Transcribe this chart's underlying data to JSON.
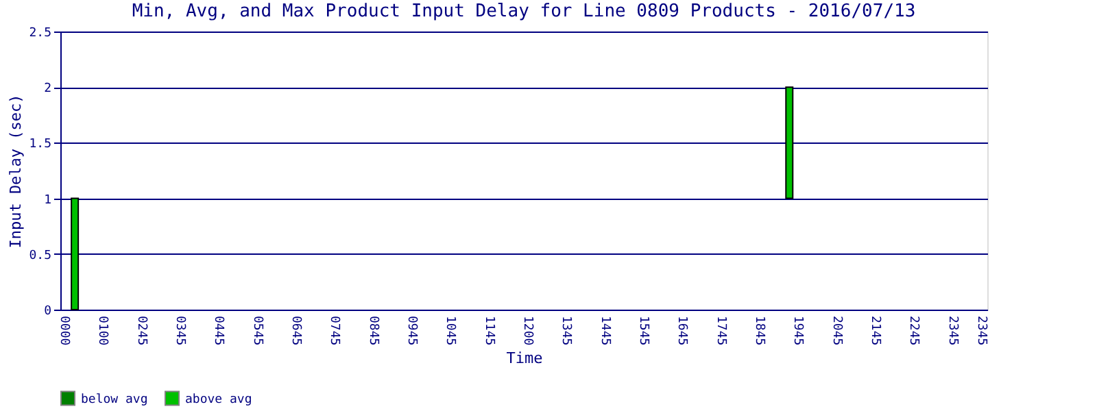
{
  "chart_data": {
    "type": "bar",
    "title": "Min, Avg, and Max Product Input Delay for Line 0809 Products - 2016/07/13",
    "xlabel": "Time",
    "ylabel": "Input Delay (sec)",
    "categories": [
      "0000",
      null,
      null,
      null,
      "0100",
      null,
      null,
      null,
      "0245",
      null,
      null,
      null,
      "0345",
      null,
      null,
      null,
      "0445",
      null,
      null,
      null,
      "0545",
      null,
      null,
      null,
      "0645",
      null,
      null,
      null,
      "0745",
      null,
      null,
      null,
      "0845",
      null,
      null,
      null,
      "0945",
      null,
      null,
      null,
      "1045",
      null,
      null,
      null,
      "1145",
      null,
      null,
      null,
      "1200",
      null,
      null,
      null,
      "1345",
      null,
      null,
      null,
      "1445",
      null,
      null,
      null,
      "1545",
      null,
      null,
      null,
      "1645",
      null,
      null,
      null,
      "1745",
      null,
      null,
      null,
      "1845",
      null,
      null,
      null,
      "1945",
      null,
      null,
      null,
      "2045",
      null,
      null,
      null,
      "2145",
      null,
      null,
      null,
      "2245",
      null,
      null,
      null,
      "2345",
      null,
      null,
      "2345"
    ],
    "series": [
      {
        "name": "below avg",
        "color": "#008000",
        "values": [
          null,
          null,
          null,
          null,
          null,
          null,
          null,
          null,
          null,
          null,
          null,
          null,
          null,
          null,
          null,
          null,
          null,
          null,
          null,
          null,
          null,
          null,
          null,
          null,
          null,
          null,
          null,
          null,
          null,
          null,
          null,
          null,
          null,
          null,
          null,
          null,
          null,
          null,
          null,
          null,
          null,
          null,
          null,
          null,
          null,
          null,
          null,
          null,
          null,
          null,
          null,
          null,
          null,
          null,
          null,
          null,
          null,
          null,
          null,
          null,
          null,
          null,
          null,
          null,
          null,
          null,
          null,
          null,
          null,
          null,
          null,
          null,
          null,
          null,
          null,
          null,
          null,
          null,
          null,
          null,
          null,
          null,
          null,
          null,
          null,
          null,
          null,
          null,
          null,
          null,
          null,
          null,
          null,
          null,
          null,
          null
        ]
      },
      {
        "name": "above avg",
        "color": "#00c000",
        "base": [
          null,
          0,
          null,
          null,
          null,
          null,
          null,
          null,
          null,
          null,
          null,
          null,
          null,
          null,
          null,
          null,
          null,
          null,
          null,
          null,
          null,
          null,
          null,
          null,
          null,
          null,
          null,
          null,
          null,
          null,
          null,
          null,
          null,
          null,
          null,
          null,
          null,
          null,
          null,
          null,
          null,
          null,
          null,
          null,
          null,
          null,
          null,
          null,
          null,
          null,
          null,
          null,
          null,
          null,
          null,
          null,
          null,
          null,
          null,
          null,
          null,
          null,
          null,
          null,
          null,
          null,
          null,
          null,
          null,
          null,
          null,
          null,
          null,
          null,
          null,
          1,
          null,
          null,
          null,
          null,
          null,
          null,
          null,
          null,
          null,
          null,
          null,
          null,
          null,
          null,
          null,
          null,
          null,
          null,
          null,
          null
        ],
        "values": [
          null,
          1,
          null,
          null,
          null,
          null,
          null,
          null,
          null,
          null,
          null,
          null,
          null,
          null,
          null,
          null,
          null,
          null,
          null,
          null,
          null,
          null,
          null,
          null,
          null,
          null,
          null,
          null,
          null,
          null,
          null,
          null,
          null,
          null,
          null,
          null,
          null,
          null,
          null,
          null,
          null,
          null,
          null,
          null,
          null,
          null,
          null,
          null,
          null,
          null,
          null,
          null,
          null,
          null,
          null,
          null,
          null,
          null,
          null,
          null,
          null,
          null,
          null,
          null,
          null,
          null,
          null,
          null,
          null,
          null,
          null,
          null,
          null,
          null,
          null,
          1,
          null,
          null,
          null,
          null,
          null,
          null,
          null,
          null,
          null,
          null,
          null,
          null,
          null,
          null,
          null,
          null,
          null,
          null,
          null,
          null
        ]
      }
    ],
    "ylim": [
      0,
      2.5
    ],
    "yticks": [
      0,
      0.5,
      1,
      1.5,
      2,
      2.5
    ],
    "grid": "y",
    "legend": "bottom"
  }
}
